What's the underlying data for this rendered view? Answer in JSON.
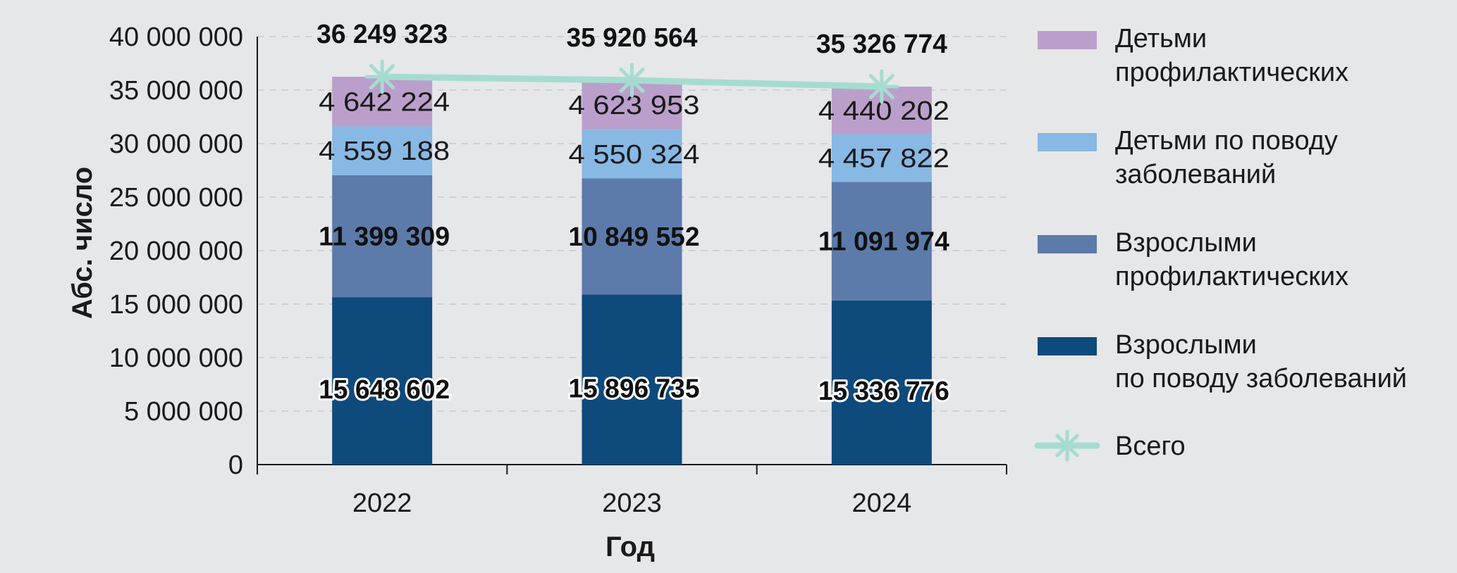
{
  "chart_data": {
    "type": "bar",
    "stacked": true,
    "xlabel": "Год",
    "ylabel": "Абс. число",
    "categories": [
      "2022",
      "2023",
      "2024"
    ],
    "ylim": [
      0,
      40000000
    ],
    "yticks": [
      0,
      5000000,
      10000000,
      15000000,
      20000000,
      25000000,
      30000000,
      35000000,
      40000000
    ],
    "ytick_labels": [
      "0",
      "5 000 000",
      "10 000 000",
      "15 000 000",
      "20 000 000",
      "25 000 000",
      "30 000 000",
      "35 000 000",
      "40 000 000"
    ],
    "grid": true,
    "legend_position": "right",
    "series": [
      {
        "name": "Взрослыми по поводу заболеваний",
        "legend_lines": [
          "Взрослыми",
          "по поводу заболеваний"
        ],
        "color": "#0e4a7c",
        "values": [
          15648602,
          15896735,
          15336776
        ],
        "labels": [
          "15 648 602",
          "15 896 735",
          "15 336 776"
        ],
        "label_style": "halo"
      },
      {
        "name": "Взрослыми профилактических",
        "legend_lines": [
          "Взрослыми",
          "профилактических"
        ],
        "color": "#5c7bab",
        "values": [
          11399309,
          10849552,
          11091974
        ],
        "labels": [
          "11 399 309",
          "10 849 552",
          "11 091 974"
        ],
        "label_style": "bold"
      },
      {
        "name": "Детьми по поводу заболеваний",
        "legend_lines": [
          "Детьми по поводу",
          "заболеваний"
        ],
        "color": "#88b8e4",
        "values": [
          4559188,
          4550324,
          4457822
        ],
        "labels": [
          "4 559 188",
          "4 550 324",
          "4 457 822"
        ],
        "label_style": "normal"
      },
      {
        "name": "Детьми профилактических",
        "legend_lines": [
          "Детьми",
          "профилактических"
        ],
        "color": "#bb9fcb",
        "values": [
          4642224,
          4623953,
          4440202
        ],
        "labels": [
          "4 642 224",
          "4 623 953",
          "4 440 202"
        ],
        "label_style": "normal"
      }
    ],
    "total": {
      "name": "Всего",
      "type": "line",
      "marker": "asterisk",
      "color": "#a6dcd0",
      "values": [
        36249323,
        35920564,
        35326774
      ],
      "labels": [
        "36 249 323",
        "35 920 564",
        "35 326 774"
      ]
    },
    "legend_order": [
      "Детьми профилактических",
      "Детьми по поводу заболеваний",
      "Взрослыми профилактических",
      "Взрослыми по поводу заболеваний",
      "Всего"
    ]
  }
}
